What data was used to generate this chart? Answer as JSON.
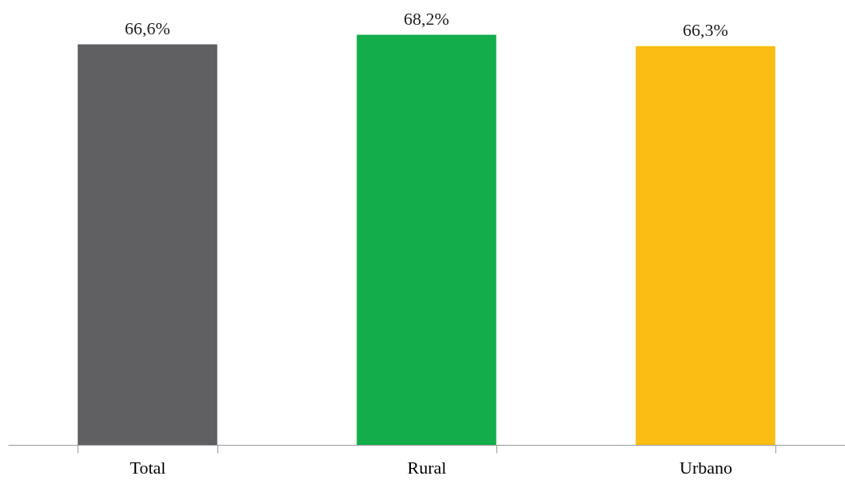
{
  "chart_data": {
    "type": "bar",
    "categories": [
      "Total",
      "Rural",
      "Urbano"
    ],
    "values": [
      66.6,
      68.2,
      66.3
    ],
    "colors": [
      "#606062",
      "#13ae4b",
      "#fbbd13"
    ],
    "value_labels": [
      "66,6%",
      "68,2%",
      "66,3%"
    ],
    "grid": false
  }
}
